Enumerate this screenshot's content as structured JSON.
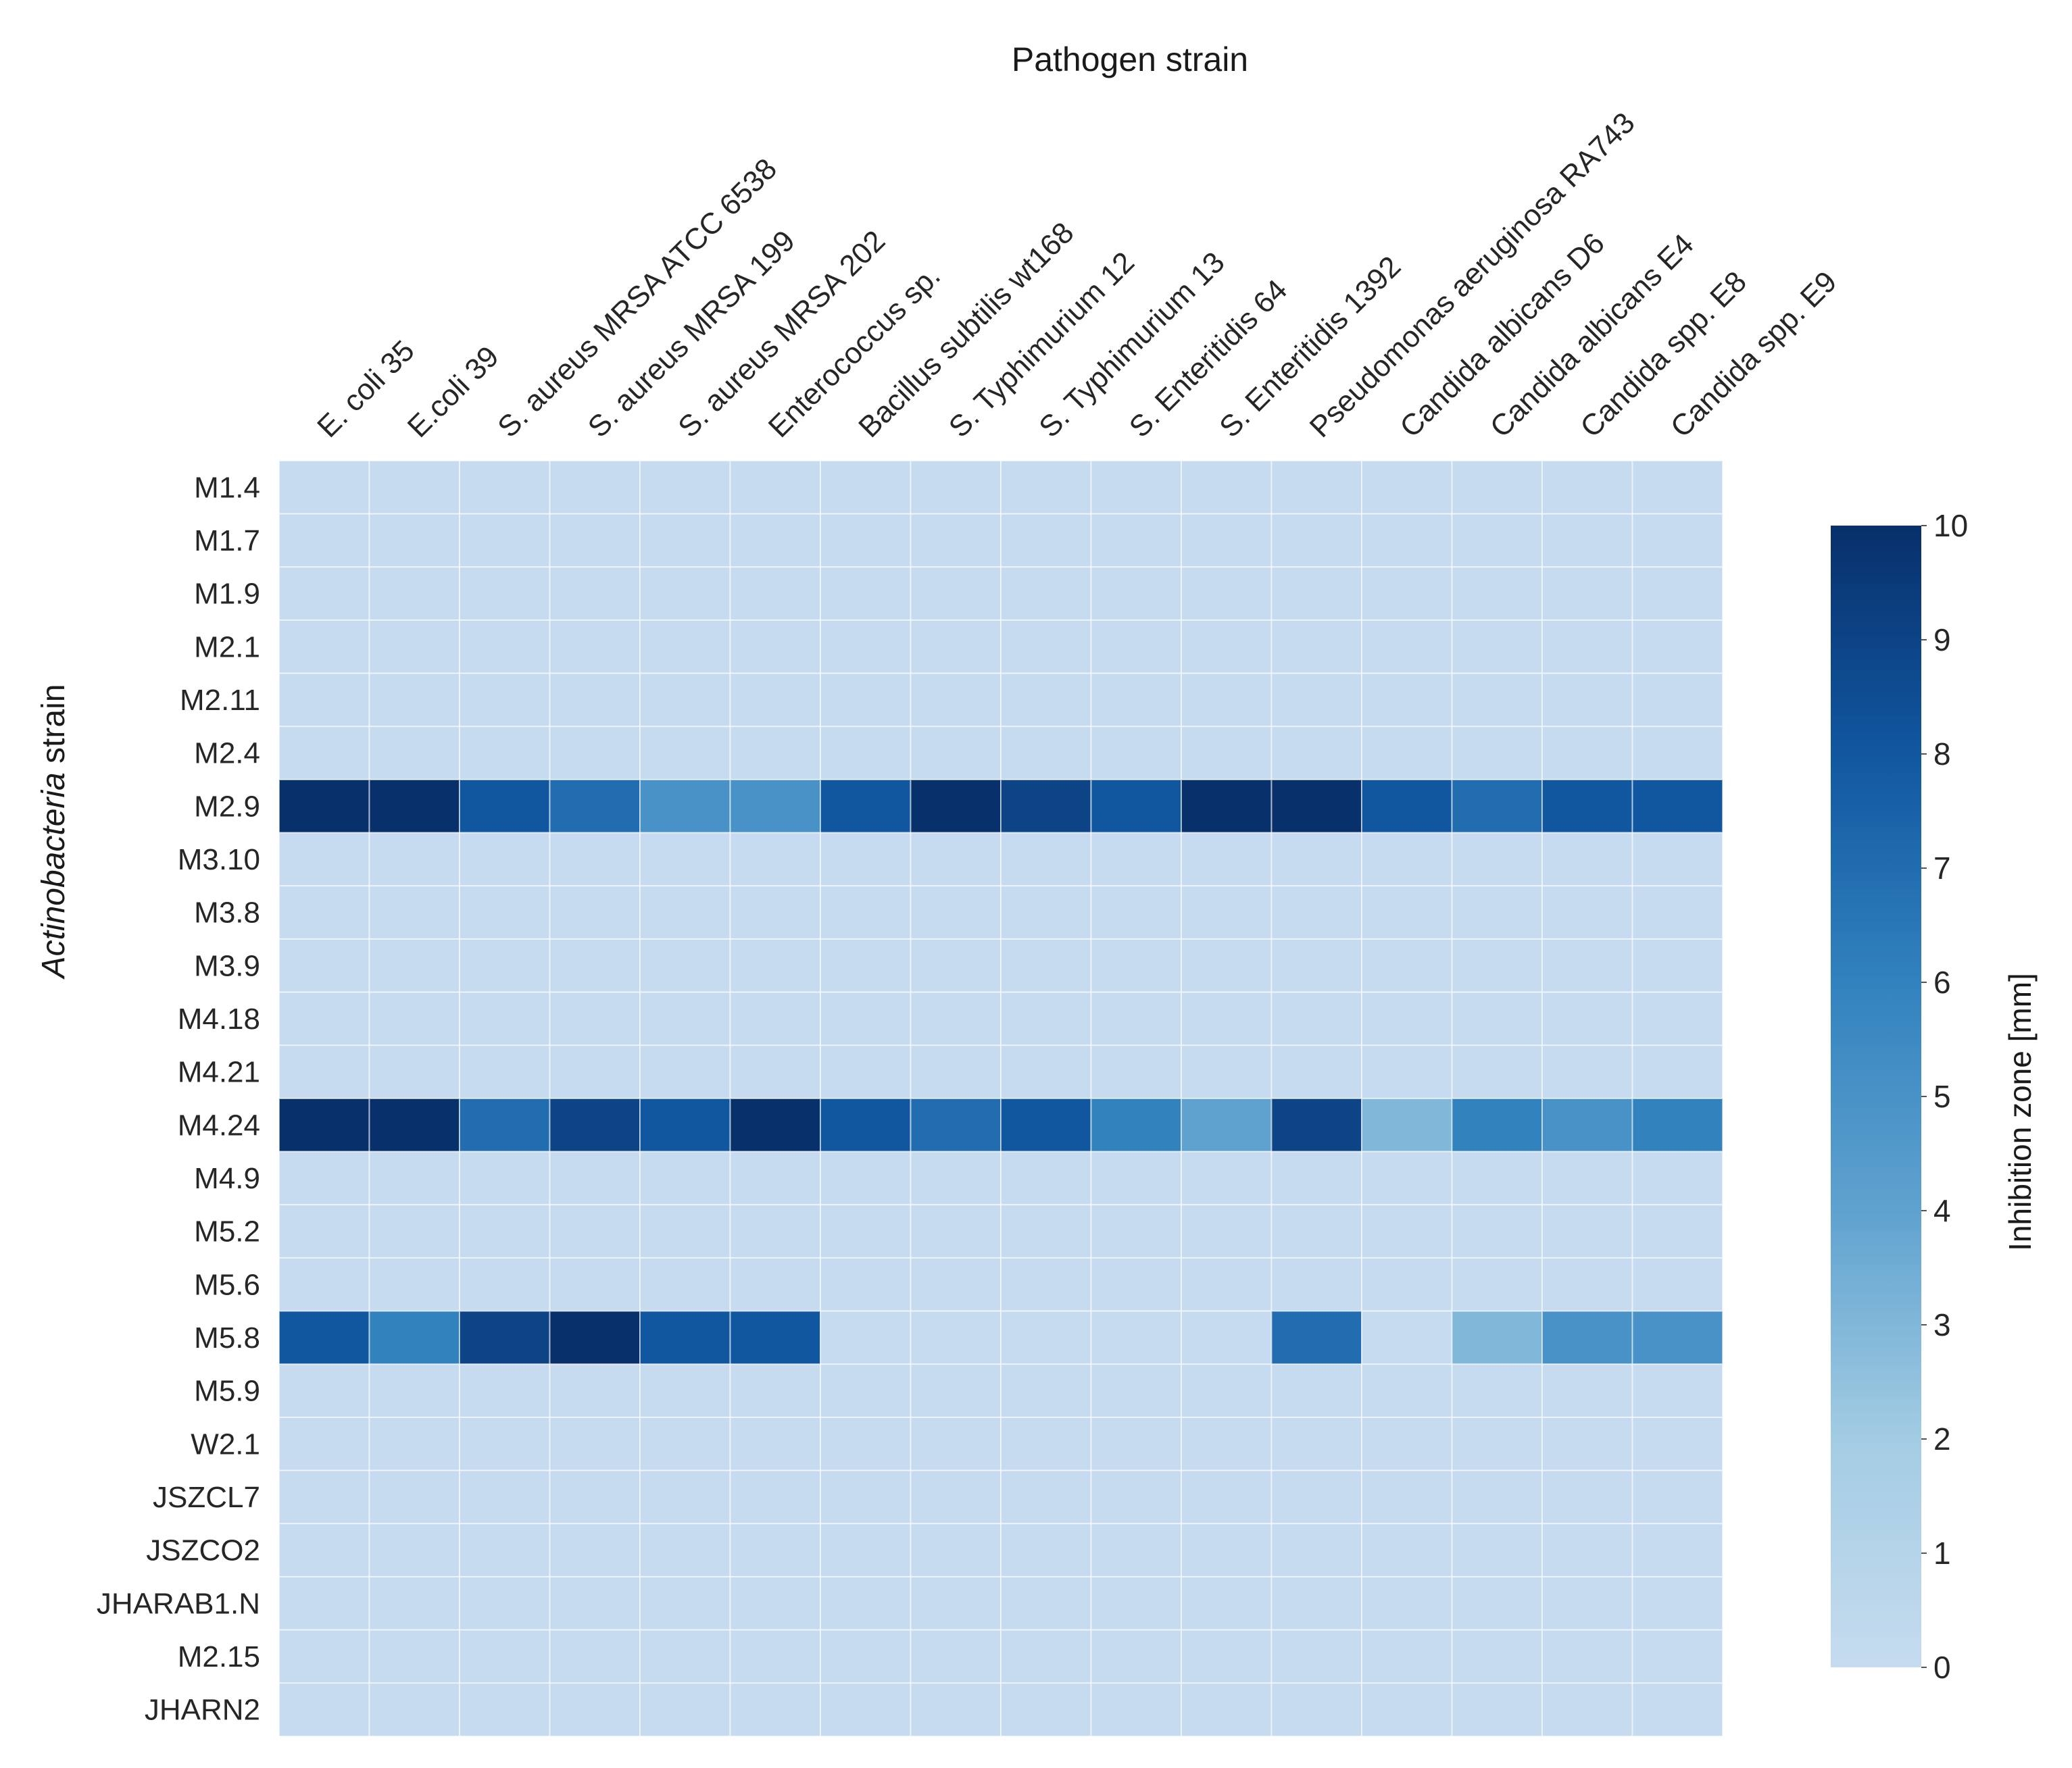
{
  "chart_data": {
    "type": "heatmap",
    "title": "",
    "xlabel": "Pathogen strain",
    "ylabel": {
      "italic": "Actinobacteria",
      "rest": " strain"
    },
    "colorbar_label": "Inhibition zone [mm]",
    "colorbar_ticks": [
      "0",
      "1",
      "2",
      "3",
      "4",
      "5",
      "6",
      "7",
      "8",
      "9",
      "10"
    ],
    "zlim": [
      0,
      10
    ],
    "colormap": "Blues",
    "low_color": "#c6dbef",
    "grid_color": "#ffffff",
    "grid": true,
    "legend_placement": "right",
    "columns": [
      "E. coli 35",
      "E.coli 39",
      "S. aureus MRSA ATCC 6538",
      "S. aureus MRSA 199",
      "S. aureus MRSA 202",
      "Enterococcus sp.",
      "Bacillus subtilis wt168",
      "S. Typhimurium 12",
      "S. Typhimurium 13",
      "S. Enteritidis 64",
      "S. Enteritidis 1392",
      "Pseudomonas aeruginosa RA743",
      "Candida albicans D6",
      "Candida albicans E4",
      "Candida spp. E8",
      "Candida spp. E9"
    ],
    "rows": [
      "M1.4",
      "M1.7",
      "M1.9",
      "M2.1",
      "M2.11",
      "M2.4",
      "M2.9",
      "M3.10",
      "M3.8",
      "M3.9",
      "M4.18",
      "M4.21",
      "M4.24",
      "M4.9",
      "M5.2",
      "M5.6",
      "M5.8",
      "M5.9",
      "W2.1",
      "JSZCL7",
      "JSZCO2",
      "JHARAB1.N",
      "M2.15",
      "JHARN2"
    ],
    "values": [
      [
        0,
        0,
        0,
        0,
        0,
        0,
        0,
        0,
        0,
        0,
        0,
        0,
        0,
        0,
        0,
        0
      ],
      [
        0,
        0,
        0,
        0,
        0,
        0,
        0,
        0,
        0,
        0,
        0,
        0,
        0,
        0,
        0,
        0
      ],
      [
        0,
        0,
        0,
        0,
        0,
        0,
        0,
        0,
        0,
        0,
        0,
        0,
        0,
        0,
        0,
        0
      ],
      [
        0,
        0,
        0,
        0,
        0,
        0,
        0,
        0,
        0,
        0,
        0,
        0,
        0,
        0,
        0,
        0
      ],
      [
        0,
        0,
        0,
        0,
        0,
        0,
        0,
        0,
        0,
        0,
        0,
        0,
        0,
        0,
        0,
        0
      ],
      [
        0,
        0,
        0,
        0,
        0,
        0,
        0,
        0,
        0,
        0,
        0,
        0,
        0,
        0,
        0,
        0
      ],
      [
        10,
        10,
        8,
        7,
        5,
        5,
        8,
        10,
        9,
        8,
        10,
        10,
        8,
        7,
        8,
        8
      ],
      [
        0,
        0,
        0,
        0,
        0,
        0,
        0,
        0,
        0,
        0,
        0,
        0,
        0,
        0,
        0,
        0
      ],
      [
        0,
        0,
        0,
        0,
        0,
        0,
        0,
        0,
        0,
        0,
        0,
        0,
        0,
        0,
        0,
        0
      ],
      [
        0,
        0,
        0,
        0,
        0,
        0,
        0,
        0,
        0,
        0,
        0,
        0,
        0,
        0,
        0,
        0
      ],
      [
        0,
        0,
        0,
        0,
        0,
        0,
        0,
        0,
        0,
        0,
        0,
        0,
        0,
        0,
        0,
        0
      ],
      [
        0,
        0,
        0,
        0,
        0,
        0,
        0,
        0,
        0,
        0,
        0,
        0,
        0,
        0,
        0,
        0
      ],
      [
        10,
        10,
        7,
        9,
        8,
        10,
        8,
        7,
        8,
        6,
        4,
        9,
        3,
        6,
        5,
        6
      ],
      [
        0,
        0,
        0,
        0,
        0,
        0,
        0,
        0,
        0,
        0,
        0,
        0,
        0,
        0,
        0,
        0
      ],
      [
        0,
        0,
        0,
        0,
        0,
        0,
        0,
        0,
        0,
        0,
        0,
        0,
        0,
        0,
        0,
        0
      ],
      [
        0,
        0,
        0,
        0,
        0,
        0,
        0,
        0,
        0,
        0,
        0,
        0,
        0,
        0,
        0,
        0
      ],
      [
        8,
        6,
        9,
        10,
        8,
        8,
        0,
        0,
        0,
        0,
        0,
        7,
        0,
        3,
        5,
        5
      ],
      [
        0,
        0,
        0,
        0,
        0,
        0,
        0,
        0,
        0,
        0,
        0,
        0,
        0,
        0,
        0,
        0
      ],
      [
        0,
        0,
        0,
        0,
        0,
        0,
        0,
        0,
        0,
        0,
        0,
        0,
        0,
        0,
        0,
        0
      ],
      [
        0,
        0,
        0,
        0,
        0,
        0,
        0,
        0,
        0,
        0,
        0,
        0,
        0,
        0,
        0,
        0
      ],
      [
        0,
        0,
        0,
        0,
        0,
        0,
        0,
        0,
        0,
        0,
        0,
        0,
        0,
        0,
        0,
        0
      ],
      [
        0,
        0,
        0,
        0,
        0,
        0,
        0,
        0,
        0,
        0,
        0,
        0,
        0,
        0,
        0,
        0
      ],
      [
        0,
        0,
        0,
        0,
        0,
        0,
        0,
        0,
        0,
        0,
        0,
        0,
        0,
        0,
        0,
        0
      ],
      [
        0,
        0,
        0,
        0,
        0,
        0,
        0,
        0,
        0,
        0,
        0,
        0,
        0,
        0,
        0,
        0
      ]
    ]
  }
}
